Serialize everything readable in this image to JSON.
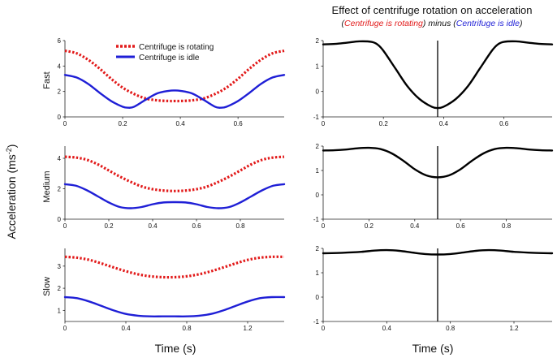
{
  "colors": {
    "rotating": "#e21a1a",
    "idle": "#1f1fd6",
    "difference": "#000000"
  },
  "figure": {
    "title": "Effect of centrifuge rotation on acceleration",
    "subtitle": {
      "open": "(",
      "rotating": "Centrifuge is rotating",
      "mid": ") minus (",
      "idle": "Centrifuge is idle",
      "close": ")"
    },
    "ylabel": "Acceleration (ms",
    "ylabel_sup": "-2",
    "ylabel_close": ")",
    "xlabel_left": "Time (s)",
    "xlabel_right": "Time (s)",
    "legend": {
      "rotating": "Centrifuge is rotating",
      "idle": "Centrifuge is idle"
    }
  },
  "chart_data": [
    {
      "type": "line",
      "panel": "left",
      "row": "Fast",
      "xlim": [
        0,
        0.76
      ],
      "ylim": [
        0,
        6
      ],
      "xticks": [
        "0",
        "0.2",
        "0.4",
        "0.6"
      ],
      "xtick_values": [
        0,
        0.2,
        0.4,
        0.6
      ],
      "yticks": [
        "0",
        "2",
        "4",
        "6"
      ],
      "ytick_values": [
        0,
        2,
        4,
        6
      ],
      "series": [
        {
          "name": "Centrifuge is rotating",
          "style": "dotted",
          "color": "rotating",
          "x": [
            0,
            0.04,
            0.08,
            0.12,
            0.16,
            0.2,
            0.24,
            0.28,
            0.32,
            0.36,
            0.38,
            0.4,
            0.44,
            0.48,
            0.52,
            0.56,
            0.6,
            0.64,
            0.68,
            0.72,
            0.76
          ],
          "y": [
            5.2,
            5.0,
            4.5,
            3.8,
            3.0,
            2.3,
            1.8,
            1.45,
            1.3,
            1.25,
            1.25,
            1.25,
            1.3,
            1.45,
            1.8,
            2.3,
            3.0,
            3.8,
            4.5,
            5.0,
            5.2
          ]
        },
        {
          "name": "Centrifuge is idle",
          "style": "solid",
          "color": "idle",
          "x": [
            0,
            0.04,
            0.08,
            0.12,
            0.16,
            0.2,
            0.22,
            0.24,
            0.28,
            0.32,
            0.36,
            0.38,
            0.4,
            0.44,
            0.48,
            0.52,
            0.54,
            0.56,
            0.6,
            0.64,
            0.68,
            0.72,
            0.76
          ],
          "y": [
            3.3,
            3.1,
            2.6,
            1.9,
            1.25,
            0.8,
            0.72,
            0.8,
            1.35,
            1.85,
            2.05,
            2.08,
            2.05,
            1.85,
            1.35,
            0.8,
            0.72,
            0.8,
            1.25,
            1.9,
            2.6,
            3.1,
            3.3
          ]
        }
      ]
    },
    {
      "type": "line",
      "panel": "right",
      "row": "Fast",
      "xlim": [
        0,
        0.76
      ],
      "ylim": [
        -1,
        2
      ],
      "xticks": [
        "0",
        "0.2",
        "0.4",
        "0.6"
      ],
      "xtick_values": [
        0,
        0.2,
        0.4,
        0.6
      ],
      "yticks": [
        "-1",
        "0",
        "1",
        "2"
      ],
      "ytick_values": [
        -1,
        0,
        1,
        2
      ],
      "marker_x": 0.38,
      "series": [
        {
          "name": "difference",
          "style": "solid",
          "color": "difference",
          "x": [
            0,
            0.04,
            0.08,
            0.12,
            0.16,
            0.18,
            0.2,
            0.24,
            0.28,
            0.32,
            0.36,
            0.38,
            0.4,
            0.44,
            0.48,
            0.52,
            0.56,
            0.58,
            0.6,
            0.64,
            0.68,
            0.72,
            0.76
          ],
          "y": [
            1.85,
            1.87,
            1.92,
            1.97,
            1.95,
            1.85,
            1.6,
            0.9,
            0.2,
            -0.3,
            -0.6,
            -0.65,
            -0.6,
            -0.3,
            0.2,
            0.9,
            1.6,
            1.85,
            1.95,
            1.97,
            1.92,
            1.87,
            1.85
          ]
        }
      ]
    },
    {
      "type": "line",
      "panel": "left",
      "row": "Medium",
      "xlim": [
        0,
        1.0
      ],
      "ylim": [
        0,
        4.8
      ],
      "xticks": [
        "0",
        "0.2",
        "0.4",
        "0.6",
        "0.8"
      ],
      "xtick_values": [
        0,
        0.2,
        0.4,
        0.6,
        0.8
      ],
      "yticks": [
        "0",
        "2",
        "4"
      ],
      "ytick_values": [
        0,
        2,
        4
      ],
      "series": [
        {
          "name": "Centrifuge is rotating",
          "style": "dotted",
          "color": "rotating",
          "x": [
            0,
            0.05,
            0.1,
            0.15,
            0.2,
            0.25,
            0.3,
            0.35,
            0.4,
            0.45,
            0.5,
            0.55,
            0.6,
            0.65,
            0.7,
            0.75,
            0.8,
            0.85,
            0.9,
            0.95,
            1.0
          ],
          "y": [
            4.1,
            4.05,
            3.9,
            3.6,
            3.2,
            2.8,
            2.45,
            2.15,
            1.97,
            1.88,
            1.85,
            1.88,
            1.97,
            2.15,
            2.45,
            2.8,
            3.2,
            3.6,
            3.9,
            4.05,
            4.1
          ]
        },
        {
          "name": "Centrifuge is idle",
          "style": "solid",
          "color": "idle",
          "x": [
            0,
            0.05,
            0.1,
            0.15,
            0.2,
            0.25,
            0.3,
            0.35,
            0.4,
            0.45,
            0.5,
            0.55,
            0.6,
            0.65,
            0.7,
            0.75,
            0.8,
            0.85,
            0.9,
            0.95,
            1.0
          ],
          "y": [
            2.3,
            2.2,
            1.9,
            1.5,
            1.1,
            0.8,
            0.72,
            0.8,
            0.98,
            1.1,
            1.12,
            1.1,
            0.98,
            0.8,
            0.72,
            0.8,
            1.1,
            1.5,
            1.9,
            2.2,
            2.3
          ]
        }
      ]
    },
    {
      "type": "line",
      "panel": "right",
      "row": "Medium",
      "xlim": [
        0,
        1.0
      ],
      "ylim": [
        -1,
        2
      ],
      "xticks": [
        "0",
        "0.2",
        "0.4",
        "0.6",
        "0.8"
      ],
      "xtick_values": [
        0,
        0.2,
        0.4,
        0.6,
        0.8
      ],
      "yticks": [
        "-1",
        "0",
        "1",
        "2"
      ],
      "ytick_values": [
        -1,
        0,
        1,
        2
      ],
      "marker_x": 0.5,
      "series": [
        {
          "name": "difference",
          "style": "solid",
          "color": "difference",
          "x": [
            0,
            0.05,
            0.1,
            0.15,
            0.2,
            0.25,
            0.3,
            0.35,
            0.4,
            0.45,
            0.5,
            0.55,
            0.6,
            0.65,
            0.7,
            0.75,
            0.8,
            0.85,
            0.9,
            0.95,
            1.0
          ],
          "y": [
            1.82,
            1.83,
            1.86,
            1.91,
            1.93,
            1.88,
            1.7,
            1.4,
            1.05,
            0.8,
            0.72,
            0.8,
            1.05,
            1.4,
            1.7,
            1.88,
            1.93,
            1.91,
            1.86,
            1.83,
            1.82
          ]
        }
      ]
    },
    {
      "type": "line",
      "panel": "left",
      "row": "Slow",
      "xlim": [
        0,
        1.44
      ],
      "ylim": [
        0.5,
        3.8
      ],
      "xticks": [
        "0",
        "0.4",
        "0.8",
        "1.2"
      ],
      "xtick_values": [
        0,
        0.4,
        0.8,
        1.2
      ],
      "yticks": [
        "1",
        "2",
        "3"
      ],
      "ytick_values": [
        1,
        2,
        3
      ],
      "series": [
        {
          "name": "Centrifuge is rotating",
          "style": "dotted",
          "color": "rotating",
          "x": [
            0,
            0.08,
            0.16,
            0.24,
            0.32,
            0.4,
            0.48,
            0.56,
            0.64,
            0.72,
            0.8,
            0.88,
            0.96,
            1.04,
            1.12,
            1.2,
            1.28,
            1.36,
            1.44
          ],
          "y": [
            3.42,
            3.38,
            3.28,
            3.12,
            2.94,
            2.77,
            2.63,
            2.54,
            2.5,
            2.5,
            2.54,
            2.63,
            2.77,
            2.94,
            3.12,
            3.28,
            3.38,
            3.42,
            3.42
          ]
        },
        {
          "name": "Centrifuge is idle",
          "style": "solid",
          "color": "idle",
          "x": [
            0,
            0.08,
            0.16,
            0.24,
            0.32,
            0.4,
            0.48,
            0.56,
            0.64,
            0.72,
            0.8,
            0.88,
            0.96,
            1.04,
            1.12,
            1.2,
            1.28,
            1.36,
            1.44
          ],
          "y": [
            1.6,
            1.55,
            1.4,
            1.2,
            1.0,
            0.84,
            0.76,
            0.73,
            0.73,
            0.73,
            0.73,
            0.76,
            0.84,
            1.0,
            1.2,
            1.4,
            1.55,
            1.6,
            1.6
          ]
        }
      ]
    },
    {
      "type": "line",
      "panel": "right",
      "row": "Slow",
      "xlim": [
        0,
        1.44
      ],
      "ylim": [
        -1,
        2
      ],
      "xticks": [
        "0",
        "0.4",
        "0.8",
        "1.2"
      ],
      "xtick_values": [
        0,
        0.4,
        0.8,
        1.2
      ],
      "yticks": [
        "-1",
        "0",
        "1",
        "2"
      ],
      "ytick_values": [
        -1,
        0,
        1,
        2
      ],
      "marker_x": 0.72,
      "series": [
        {
          "name": "difference",
          "style": "solid",
          "color": "difference",
          "x": [
            0,
            0.12,
            0.24,
            0.32,
            0.4,
            0.48,
            0.56,
            0.64,
            0.72,
            0.8,
            0.88,
            0.96,
            1.04,
            1.12,
            1.2,
            1.32,
            1.44
          ],
          "y": [
            1.8,
            1.82,
            1.86,
            1.91,
            1.93,
            1.9,
            1.83,
            1.77,
            1.75,
            1.77,
            1.83,
            1.9,
            1.93,
            1.91,
            1.86,
            1.82,
            1.8
          ]
        }
      ]
    }
  ]
}
